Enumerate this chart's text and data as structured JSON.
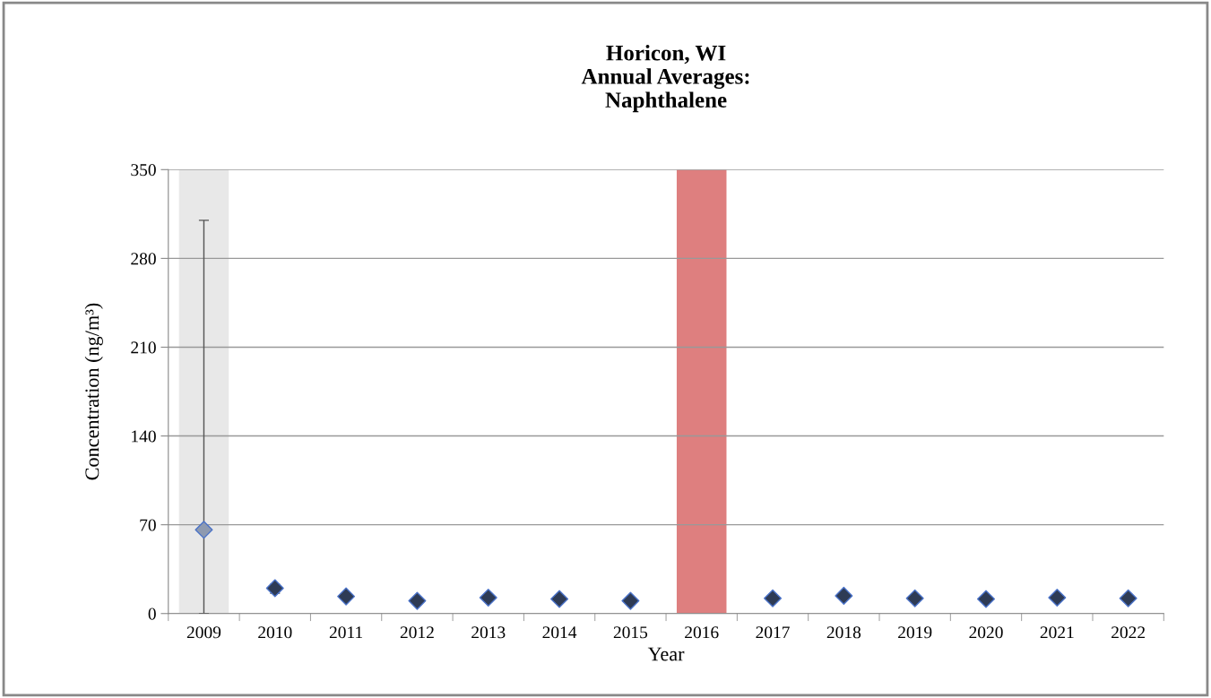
{
  "chart_data": {
    "type": "scatter",
    "title": "Horicon, WI\nAnnual Averages:\nNaphthalene",
    "xlabel": "Year",
    "ylabel": "Concentration (ng/m³)",
    "categories": [
      "2009",
      "2010",
      "2011",
      "2012",
      "2013",
      "2014",
      "2015",
      "2016",
      "2017",
      "2018",
      "2019",
      "2020",
      "2021",
      "2022"
    ],
    "values": [
      66,
      20,
      13.5,
      10,
      12.5,
      11.5,
      10,
      null,
      12,
      14,
      12,
      11.5,
      12.5,
      12
    ],
    "errors": [
      [
        0,
        310
      ],
      [
        16,
        23
      ],
      null,
      null,
      null,
      null,
      null,
      null,
      null,
      null,
      null,
      null,
      null,
      null
    ],
    "colors": [
      "#8e9ab0",
      "#2e3b55",
      "#2e3b55",
      "#2e3b55",
      "#2e3b55",
      "#2e3b55",
      "#2e3b55",
      "#2e3b55",
      "#2e3b55",
      "#2e3b55",
      "#2e3b55",
      "#2e3b55",
      "#2e3b55",
      "#2e3b55"
    ],
    "marker": "diamond",
    "ylim": [
      0,
      350
    ],
    "yticks": [
      0,
      70,
      140,
      210,
      280,
      350
    ],
    "grid": "y",
    "bands": [
      {
        "axis": "x",
        "from": "2009",
        "to": "2009",
        "color": "#e8e8e8"
      },
      {
        "axis": "x",
        "from": "2016",
        "to": "2016",
        "color": "#de7f7f"
      }
    ]
  }
}
